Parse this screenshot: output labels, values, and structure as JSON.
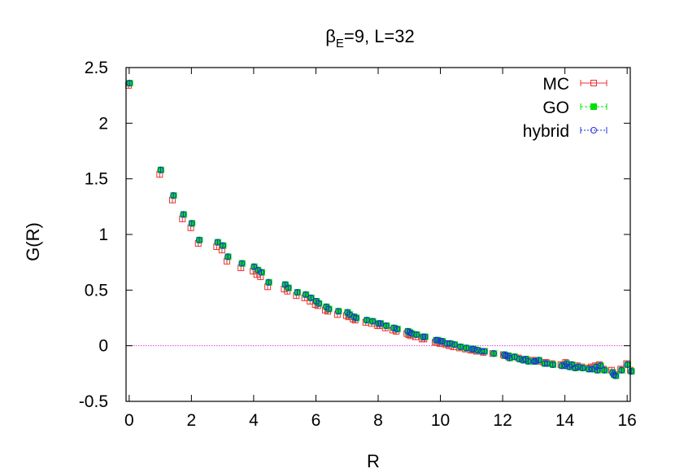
{
  "chart_data": {
    "type": "scatter",
    "title_main": "β",
    "title_sub": "E",
    "title_rest": "=9, L=32",
    "xlabel": "R",
    "ylabel": "G(R)",
    "xlim": [
      -0.1,
      16.1
    ],
    "ylim": [
      -0.5,
      2.5
    ],
    "xticks": [
      0,
      2,
      4,
      6,
      8,
      10,
      12,
      14,
      16
    ],
    "yticks": [
      -0.5,
      0,
      0.5,
      1,
      1.5,
      2,
      2.5
    ],
    "ytick_labels": [
      "-0.5",
      "0",
      "0.5",
      "1",
      "1.5",
      "2",
      "2.5"
    ],
    "legend_position": "top-right",
    "zero_line": true,
    "zero_line_color": "#e040e0",
    "x": [
      0,
      1,
      1.41,
      1.73,
      2,
      2.24,
      2.83,
      3,
      3.16,
      3.61,
      4,
      4.12,
      4.24,
      4.47,
      5,
      5.1,
      5.39,
      5.66,
      5.83,
      6,
      6.08,
      6.32,
      6.4,
      6.71,
      7,
      7.07,
      7.21,
      7.28,
      7.62,
      7.81,
      8,
      8.06,
      8.25,
      8.49,
      8.6,
      8.94,
      9,
      9.06,
      9.22,
      9.43,
      9.49,
      9.85,
      9.9,
      10,
      10.05,
      10.2,
      10.3,
      10.44,
      10.63,
      10.82,
      11,
      11.05,
      11.18,
      11.31,
      11.4,
      11.7,
      12.04,
      12.08,
      12.17,
      12.21,
      12.37,
      12.53,
      12.65,
      12.73,
      12.81,
      13,
      13.04,
      13.15,
      13.34,
      13.42,
      13.6,
      13.89,
      14,
      14.04,
      14.14,
      14.21,
      14.32,
      14.42,
      14.56,
      14.76,
      14.87,
      15,
      15.03,
      15.13,
      15.26,
      15.52,
      15.56,
      15.62,
      15.81,
      16,
      16.12
    ],
    "series": [
      {
        "name": "MC",
        "color": "#ee3030",
        "marker": "square-open",
        "offset": -0.02,
        "values": [
          2.34,
          1.54,
          1.31,
          1.14,
          1.06,
          0.92,
          0.89,
          0.86,
          0.76,
          0.7,
          0.67,
          0.64,
          0.62,
          0.53,
          0.51,
          0.49,
          0.45,
          0.43,
          0.4,
          0.37,
          0.36,
          0.32,
          0.31,
          0.28,
          0.27,
          0.26,
          0.24,
          0.23,
          0.21,
          0.2,
          0.18,
          0.18,
          0.16,
          0.14,
          0.13,
          0.11,
          0.1,
          0.09,
          0.08,
          0.06,
          0.06,
          0.03,
          0.03,
          0.02,
          0.02,
          0.01,
          0.0,
          -0.01,
          -0.02,
          -0.03,
          -0.04,
          -0.04,
          -0.05,
          -0.05,
          -0.06,
          -0.07,
          -0.08,
          -0.09,
          -0.09,
          -0.1,
          -0.1,
          -0.11,
          -0.12,
          -0.12,
          -0.13,
          -0.13,
          -0.14,
          -0.14,
          -0.15,
          -0.15,
          -0.16,
          -0.17,
          -0.17,
          -0.15,
          -0.18,
          -0.17,
          -0.19,
          -0.18,
          -0.19,
          -0.2,
          -0.19,
          -0.18,
          -0.2,
          -0.17,
          -0.21,
          -0.22,
          -0.24,
          -0.26,
          -0.21,
          -0.16,
          -0.22
        ]
      },
      {
        "name": "GO",
        "color": "#00e000",
        "marker": "square-filled",
        "offset": 0.02,
        "values": [
          2.36,
          1.58,
          1.35,
          1.18,
          1.1,
          0.95,
          0.93,
          0.9,
          0.8,
          0.74,
          0.71,
          0.68,
          0.66,
          0.57,
          0.55,
          0.52,
          0.48,
          0.46,
          0.43,
          0.4,
          0.38,
          0.35,
          0.33,
          0.31,
          0.3,
          0.28,
          0.26,
          0.25,
          0.23,
          0.22,
          0.2,
          0.2,
          0.18,
          0.16,
          0.15,
          0.13,
          0.12,
          0.11,
          0.1,
          0.08,
          0.08,
          0.05,
          0.05,
          0.04,
          0.04,
          0.02,
          0.02,
          0.01,
          -0.01,
          -0.02,
          -0.03,
          -0.03,
          -0.04,
          -0.05,
          -0.05,
          -0.07,
          -0.08,
          -0.09,
          -0.09,
          -0.11,
          -0.1,
          -0.12,
          -0.13,
          -0.12,
          -0.14,
          -0.14,
          -0.14,
          -0.13,
          -0.16,
          -0.16,
          -0.17,
          -0.18,
          -0.18,
          -0.16,
          -0.19,
          -0.17,
          -0.2,
          -0.19,
          -0.2,
          -0.21,
          -0.21,
          -0.19,
          -0.22,
          -0.18,
          -0.22,
          -0.24,
          -0.26,
          -0.27,
          -0.22,
          -0.17,
          -0.23
        ]
      },
      {
        "name": "hybrid",
        "color": "#2030e0",
        "marker": "circle-open",
        "offset": 0.01,
        "values": [
          2.36,
          1.58,
          1.35,
          1.18,
          1.1,
          0.95,
          0.93,
          0.9,
          0.8,
          0.74,
          0.71,
          0.68,
          0.66,
          0.57,
          0.55,
          0.52,
          0.48,
          0.46,
          0.43,
          0.4,
          0.38,
          0.35,
          0.33,
          0.31,
          0.3,
          0.28,
          0.26,
          0.25,
          0.23,
          0.22,
          0.2,
          0.2,
          0.18,
          0.16,
          0.15,
          0.13,
          0.12,
          0.11,
          0.1,
          0.08,
          0.08,
          0.05,
          0.05,
          0.04,
          0.04,
          0.02,
          0.02,
          0.01,
          -0.01,
          -0.02,
          -0.03,
          -0.03,
          -0.04,
          -0.05,
          -0.05,
          -0.07,
          -0.08,
          -0.09,
          -0.09,
          -0.11,
          -0.1,
          -0.12,
          -0.13,
          -0.12,
          -0.14,
          -0.14,
          -0.14,
          -0.13,
          -0.16,
          -0.16,
          -0.17,
          -0.18,
          -0.18,
          -0.16,
          -0.19,
          -0.17,
          -0.2,
          -0.19,
          -0.2,
          -0.21,
          -0.21,
          -0.19,
          -0.22,
          -0.18,
          -0.22,
          -0.24,
          -0.26,
          -0.27,
          -0.22,
          -0.17,
          -0.23
        ]
      }
    ]
  }
}
